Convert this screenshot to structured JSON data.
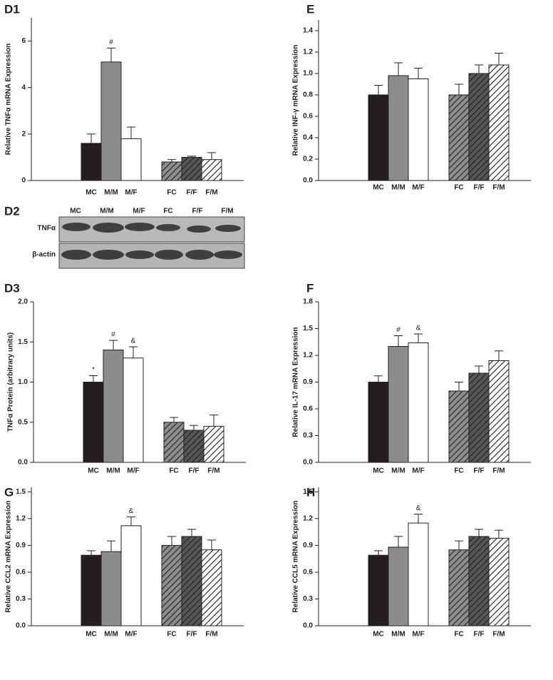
{
  "chart_data": [
    {
      "type": "bar",
      "panel": "D1",
      "ylabel": "Relative TNFα mRNA Expression",
      "categories": [
        "MC",
        "M/M",
        "M/F",
        "FC",
        "F/F",
        "F/M"
      ],
      "values": [
        1.6,
        5.1,
        1.8,
        0.8,
        1.0,
        0.9
      ],
      "errors": [
        0.4,
        0.6,
        0.5,
        0.1,
        0.05,
        0.3
      ],
      "markers": [
        null,
        "#",
        null,
        null,
        null,
        null
      ],
      "colors": [
        "#231f20",
        "#8c8c8c",
        "#ffffff",
        "#8c8c8c",
        "#555555",
        "#ffffff"
      ],
      "hatch": [
        false,
        false,
        false,
        true,
        true,
        true
      ],
      "ylim": [
        0,
        7
      ],
      "yticks": [
        0,
        2,
        4,
        6
      ]
    },
    {
      "type": "bar",
      "panel": "E",
      "ylabel": "Relative INF-γ mRNA Expression",
      "categories": [
        "MC",
        "M/M",
        "M/F",
        "FC",
        "F/F",
        "F/M"
      ],
      "values": [
        0.8,
        0.98,
        0.95,
        0.8,
        1.0,
        1.08
      ],
      "errors": [
        0.09,
        0.12,
        0.1,
        0.1,
        0.08,
        0.11
      ],
      "markers": [
        null,
        null,
        null,
        null,
        null,
        null
      ],
      "colors": [
        "#231f20",
        "#8c8c8c",
        "#ffffff",
        "#8c8c8c",
        "#555555",
        "#ffffff"
      ],
      "hatch": [
        false,
        false,
        false,
        true,
        true,
        true
      ],
      "ylim": [
        0,
        1.5
      ],
      "yticks": [
        {
          "value": 0,
          "label": "0.0"
        },
        0.2,
        0.4,
        0.6,
        0.8,
        {
          "value": 1,
          "label": "1.0"
        },
        1.2,
        1.4
      ]
    },
    {
      "type": "bar",
      "panel": "D3",
      "ylabel": "TNFα Protein (arbitrary units)",
      "categories": [
        "MC",
        "M/M",
        "M/F",
        "FC",
        "F/F",
        "F/M"
      ],
      "values": [
        1.0,
        1.4,
        1.3,
        0.5,
        0.4,
        0.45
      ],
      "errors": [
        0.08,
        0.12,
        0.14,
        0.06,
        0.06,
        0.14
      ],
      "markers": [
        "*",
        "#",
        "&",
        null,
        null,
        null
      ],
      "colors": [
        "#231f20",
        "#8c8c8c",
        "#ffffff",
        "#8c8c8c",
        "#555555",
        "#ffffff"
      ],
      "hatch": [
        false,
        false,
        false,
        true,
        true,
        true
      ],
      "ylim": [
        0,
        2
      ],
      "yticks": [
        {
          "value": 0,
          "label": "0.0"
        },
        0.5,
        {
          "value": 1,
          "label": "1.0"
        },
        1.5,
        {
          "value": 2,
          "label": "2.0"
        }
      ]
    },
    {
      "type": "bar",
      "panel": "F",
      "ylabel": "Relative IL-17 mRNA Expression",
      "categories": [
        "MC",
        "M/M",
        "M/F",
        "FC",
        "F/F",
        "F/M"
      ],
      "values": [
        0.9,
        1.3,
        1.34,
        0.8,
        1.0,
        1.14
      ],
      "errors": [
        0.07,
        0.12,
        0.1,
        0.1,
        0.08,
        0.11
      ],
      "markers": [
        null,
        "#",
        "&",
        null,
        null,
        null
      ],
      "colors": [
        "#231f20",
        "#8c8c8c",
        "#ffffff",
        "#8c8c8c",
        "#555555",
        "#ffffff"
      ],
      "hatch": [
        false,
        false,
        false,
        true,
        true,
        true
      ],
      "ylim": [
        0,
        1.8
      ],
      "yticks": [
        {
          "value": 0,
          "label": "0.0"
        },
        0.3,
        0.6,
        0.9,
        1.2,
        1.5,
        1.8
      ]
    },
    {
      "type": "bar",
      "panel": "G",
      "ylabel": "Relative CCL2 mRNA Expression",
      "categories": [
        "MC",
        "M/M",
        "M/F",
        "FC",
        "F/F",
        "F/M"
      ],
      "values": [
        0.79,
        0.83,
        1.12,
        0.9,
        1.0,
        0.85
      ],
      "errors": [
        0.05,
        0.12,
        0.1,
        0.1,
        0.08,
        0.11
      ],
      "markers": [
        null,
        null,
        "&",
        null,
        null,
        null
      ],
      "colors": [
        "#231f20",
        "#8c8c8c",
        "#ffffff",
        "#8c8c8c",
        "#555555",
        "#ffffff"
      ],
      "hatch": [
        false,
        false,
        false,
        true,
        true,
        true
      ],
      "ylim": [
        0,
        1.55
      ],
      "yticks": [
        {
          "value": 0,
          "label": "0.0"
        },
        0.3,
        0.6,
        0.9,
        1.2,
        1.5
      ]
    },
    {
      "type": "bar",
      "panel": "H",
      "ylabel": "Relative CCL5 mRNA Expression",
      "categories": [
        "MC",
        "M/M",
        "M/F",
        "FC",
        "F/F",
        "F/M"
      ],
      "values": [
        0.79,
        0.88,
        1.15,
        0.85,
        1.0,
        0.98
      ],
      "errors": [
        0.05,
        0.12,
        0.1,
        0.1,
        0.08,
        0.09
      ],
      "markers": [
        null,
        null,
        "&",
        null,
        null,
        null
      ],
      "colors": [
        "#231f20",
        "#8c8c8c",
        "#ffffff",
        "#8c8c8c",
        "#555555",
        "#ffffff"
      ],
      "hatch": [
        false,
        false,
        false,
        true,
        true,
        true
      ],
      "ylim": [
        0,
        1.55
      ],
      "yticks": [
        {
          "value": 0,
          "label": "0.0"
        },
        0.3,
        0.6,
        0.9,
        1.2,
        1.5
      ]
    }
  ],
  "blot": {
    "panel": "D2",
    "lanes": [
      "MC",
      "M/M",
      "M/F",
      "FC",
      "F/F",
      "F/M"
    ],
    "rows": [
      "TNFα",
      "β-actin"
    ]
  }
}
